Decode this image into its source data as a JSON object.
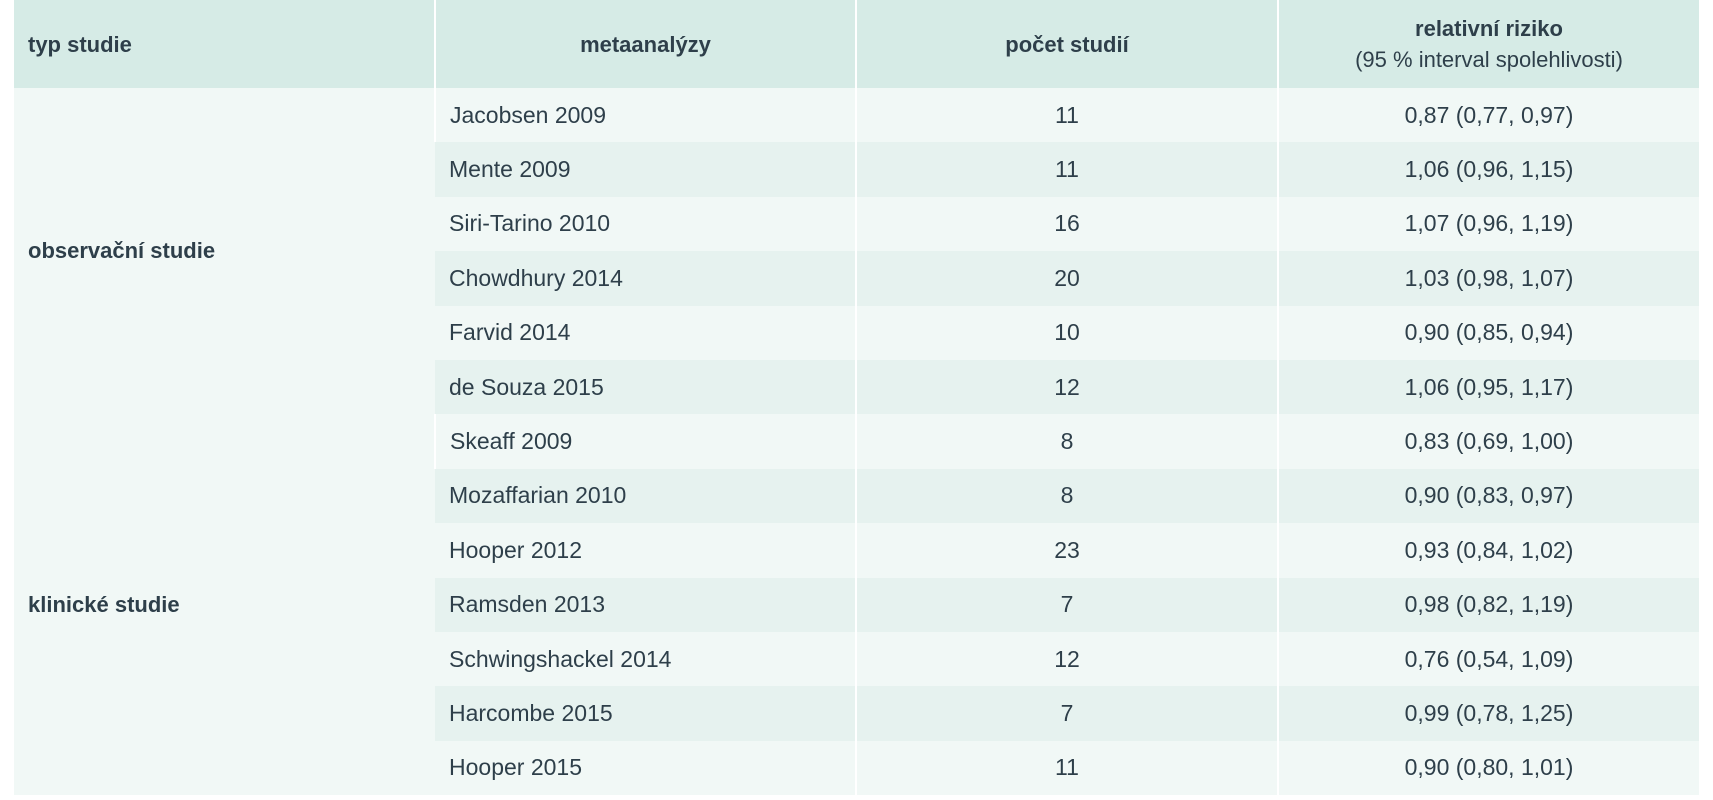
{
  "table": {
    "headers": {
      "type": "typ studie",
      "meta": "metaanalýzy",
      "count": "počet studií",
      "rr_line1": "relativní riziko",
      "rr_line2": "(95 % interval spolehlivosti)"
    },
    "groups": [
      {
        "label": "observační studie",
        "rows": [
          {
            "name": "Jacobsen 2009",
            "count": "11",
            "rr": "0,87 (0,77, 0,97)"
          },
          {
            "name": "Mente 2009",
            "count": "11",
            "rr": "1,06 (0,96, 1,15)"
          },
          {
            "name": "Siri-Tarino 2010",
            "count": "16",
            "rr": "1,07 (0,96, 1,19)"
          },
          {
            "name": "Chowdhury 2014",
            "count": "20",
            "rr": "1,03 (0,98, 1,07)"
          },
          {
            "name": "Farvid 2014",
            "count": "10",
            "rr": "0,90 (0,85, 0,94)"
          },
          {
            "name": "de Souza 2015",
            "count": "12",
            "rr": "1,06 (0,95, 1,17)"
          }
        ]
      },
      {
        "label": "klinické studie",
        "rows": [
          {
            "name": "Skeaff 2009",
            "count": "8",
            "rr": "0,83 (0,69, 1,00)"
          },
          {
            "name": "Mozaffarian 2010",
            "count": "8",
            "rr": "0,90 (0,83, 0,97)"
          },
          {
            "name": "Hooper 2012",
            "count": "23",
            "rr": "0,93 (0,84, 1,02)"
          },
          {
            "name": "Ramsden 2013",
            "count": "7",
            "rr": "0,98 (0,82, 1,19)"
          },
          {
            "name": "Schwingshackel 2014",
            "count": "12",
            "rr": "0,76 (0,54, 1,09)"
          },
          {
            "name": "Harcombe 2015",
            "count": "7",
            "rr": "0,99 (0,78, 1,25)"
          },
          {
            "name": "Hooper 2015",
            "count": "11",
            "rr": "0,90 (0,80, 1,01)"
          }
        ]
      }
    ]
  }
}
